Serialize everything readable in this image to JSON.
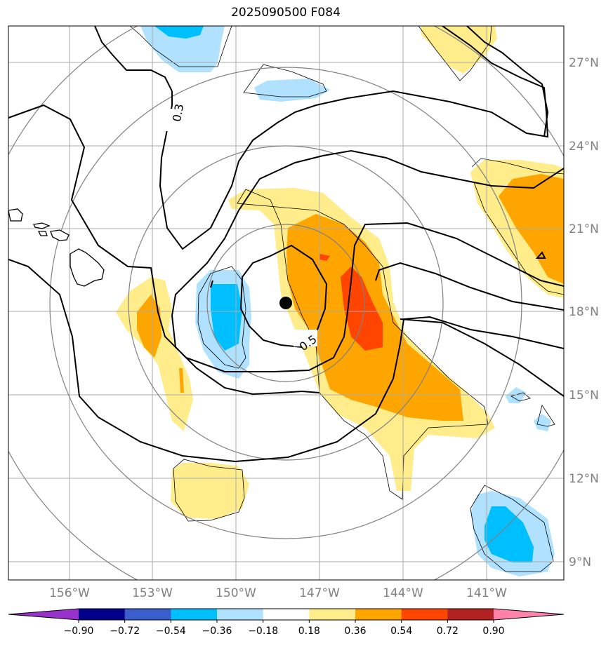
{
  "title": "2025090500 F084",
  "map": {
    "latitude_labels": [
      "9°N",
      "12°N",
      "15°N",
      "18°N",
      "21°N",
      "24°N",
      "27°N"
    ],
    "longitude_labels": [
      "156°W",
      "153°W",
      "150°W",
      "147°W",
      "144°W",
      "141°W"
    ],
    "contour_labels": [
      "0.3",
      "0.5"
    ],
    "center_marker": "storm-center-dot"
  },
  "colorbar": {
    "ticks": [
      "−0.90",
      "−0.72",
      "−0.54",
      "−0.36",
      "−0.18",
      "0.18",
      "0.36",
      "0.54",
      "0.72",
      "0.90"
    ],
    "colors": [
      "#9932cc",
      "#00008b",
      "#3a5fcd",
      "#00bfff",
      "#b0e2ff",
      "#ffffff",
      "#ffec8b",
      "#ffa500",
      "#ff4500",
      "#b22222",
      "#ff82ab"
    ]
  }
}
